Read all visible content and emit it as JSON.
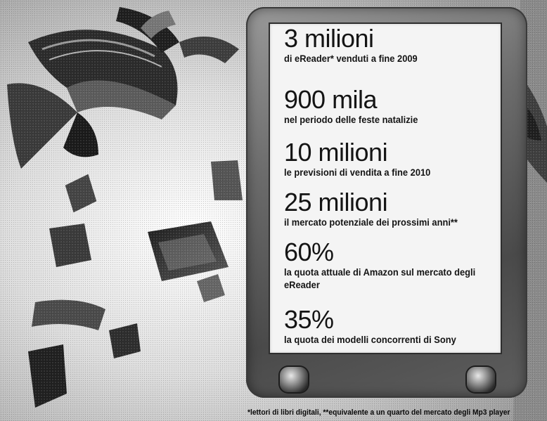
{
  "stats": [
    {
      "big": "3 milioni",
      "small": "di eReader* venduti a fine 2009"
    },
    {
      "big": "900 mila",
      "small": "nel periodo delle feste natalizie"
    },
    {
      "big": "10 milioni",
      "small": "le previsioni di vendita a fine 2010"
    },
    {
      "big": "25 milioni",
      "small": "il mercato potenziale dei prossimi anni**"
    },
    {
      "big": "60%",
      "small": "la quota attuale di Amazon sul mercato degli eReader"
    },
    {
      "big": "35%",
      "small": "la quota dei modelli concorrenti di Sony"
    }
  ],
  "footnote": "*lettori di libri digitali, **equivalente a un quarto del mercato degli Mp3 player",
  "colors": {
    "text": "#141414",
    "screen": "#f4f4f4",
    "device_frame": "#5e5e5e"
  }
}
